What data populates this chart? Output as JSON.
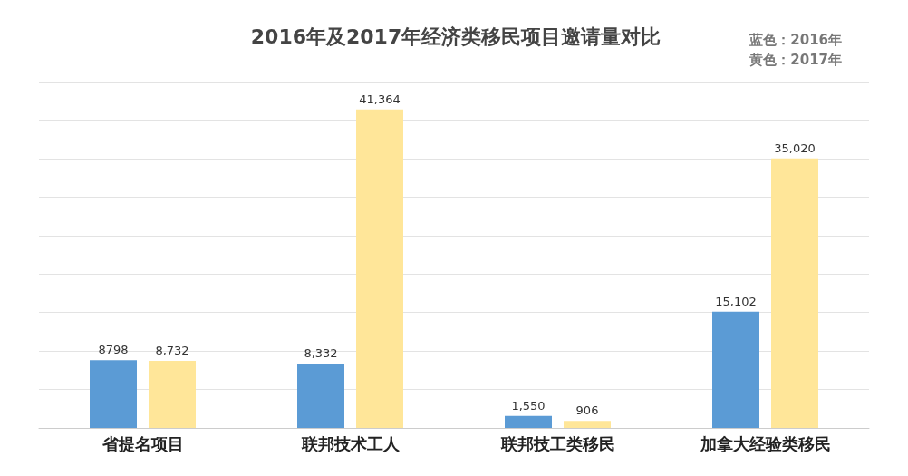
{
  "chart_data": {
    "type": "bar",
    "title": "2016年及2017年经济类移民项目邀请量对比",
    "categories": [
      "省提名项目",
      "联邦技术工人",
      "联邦技工类移民",
      "加拿大经验类移民"
    ],
    "series": [
      {
        "color": "#5b9bd5",
        "values": [
          8798,
          8332,
          1550,
          15102
        ],
        "value_labels": [
          "8798",
          "8,332",
          "1,550",
          "15,102"
        ]
      },
      {
        "color": "#ffe699",
        "values": [
          8732,
          41364,
          906,
          35020
        ],
        "value_labels": [
          "8,732",
          "41,364",
          "906",
          "35,020"
        ]
      }
    ],
    "annotations": [
      "蓝色：2016年",
      "黄色：2017年"
    ],
    "ylim": [
      0,
      45000
    ],
    "yticks": [
      {
        "value": 0,
        "label": null
      },
      {
        "value": 5000,
        "label": null
      },
      {
        "value": 10000,
        "label": null
      },
      {
        "value": 15000,
        "label": null
      },
      {
        "value": 20000,
        "label": null
      },
      {
        "value": 25000,
        "label": null
      },
      {
        "value": 30000,
        "label": null
      },
      {
        "value": 35000,
        "label": null
      },
      {
        "value": 40000,
        "label": null
      },
      {
        "value": 45000,
        "label": null
      }
    ],
    "grid": "y",
    "tick_labels": "x"
  }
}
